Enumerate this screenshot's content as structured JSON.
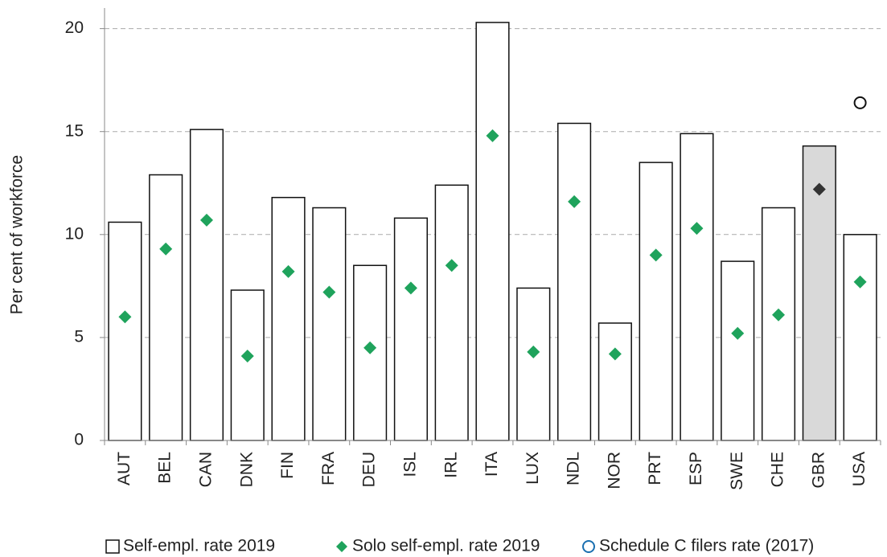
{
  "chart_data": {
    "type": "bar",
    "y_label": "Per cent of workforce",
    "categories": [
      "AUT",
      "BEL",
      "CAN",
      "DNK",
      "FIN",
      "FRA",
      "DEU",
      "ISL",
      "IRL",
      "ITA",
      "LUX",
      "NDL",
      "NOR",
      "PRT",
      "ESP",
      "SWE",
      "CHE",
      "GBR",
      "USA"
    ],
    "series": [
      {
        "name": "Self-empl. rate 2019",
        "marker": "bar",
        "color": "#ffffff",
        "colors": [
          "#ffffff",
          "#ffffff",
          "#ffffff",
          "#ffffff",
          "#ffffff",
          "#ffffff",
          "#ffffff",
          "#ffffff",
          "#ffffff",
          "#ffffff",
          "#ffffff",
          "#ffffff",
          "#ffffff",
          "#ffffff",
          "#ffffff",
          "#ffffff",
          "#ffffff",
          "#d9d9d9",
          "#ffffff"
        ],
        "values": [
          10.6,
          12.9,
          15.1,
          7.3,
          11.8,
          11.3,
          8.5,
          10.8,
          12.4,
          20.3,
          7.4,
          15.4,
          5.7,
          13.5,
          14.9,
          8.7,
          11.3,
          14.3,
          10.0
        ]
      },
      {
        "name": "Solo self-empl. rate 2019",
        "marker": "diamond",
        "color": "#1fa35c",
        "colors": [
          "#1fa35c",
          "#1fa35c",
          "#1fa35c",
          "#1fa35c",
          "#1fa35c",
          "#1fa35c",
          "#1fa35c",
          "#1fa35c",
          "#1fa35c",
          "#1fa35c",
          "#1fa35c",
          "#1fa35c",
          "#1fa35c",
          "#1fa35c",
          "#1fa35c",
          "#1fa35c",
          "#1fa35c",
          "#333333",
          "#1fa35c"
        ],
        "values": [
          6.0,
          9.3,
          10.7,
          4.1,
          8.2,
          7.2,
          4.5,
          7.4,
          8.5,
          14.8,
          4.3,
          11.6,
          4.2,
          9.0,
          10.3,
          5.2,
          6.1,
          12.2,
          7.7
        ]
      },
      {
        "name": "Schedule C filers rate (2017)",
        "marker": "circle",
        "color": "#1a6fb0",
        "values": [
          null,
          null,
          null,
          null,
          null,
          null,
          null,
          null,
          null,
          null,
          null,
          null,
          null,
          null,
          null,
          null,
          null,
          null,
          16.4
        ]
      }
    ],
    "ylim": [
      0,
      21
    ],
    "yticks": [
      0,
      5,
      10,
      15,
      20
    ],
    "grid": true,
    "legend": "bottom"
  }
}
